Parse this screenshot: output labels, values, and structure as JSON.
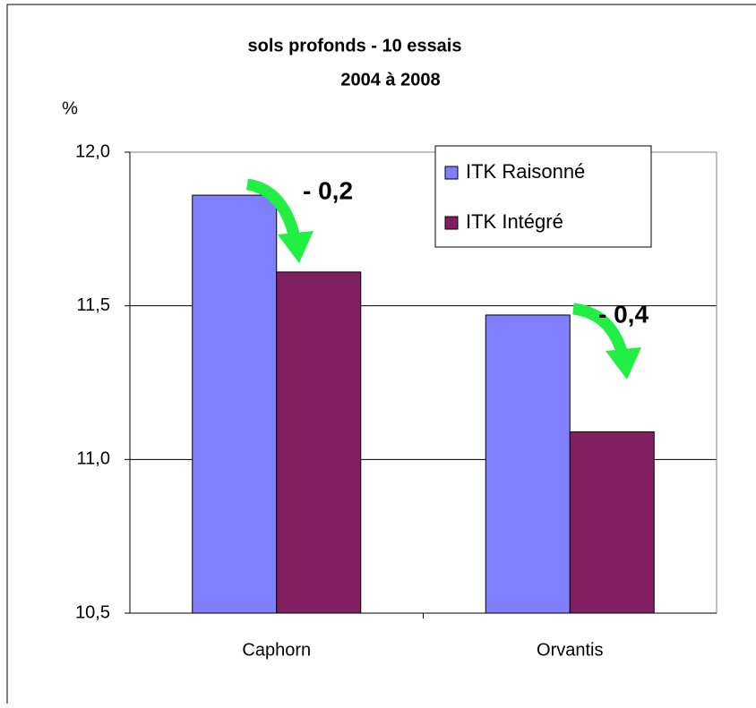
{
  "chart_data": {
    "type": "bar",
    "title": [
      "sols profonds - 10 essais",
      "2004 à 2008"
    ],
    "y_label": "%",
    "categories": [
      "Caphorn",
      "Orvantis"
    ],
    "series": [
      {
        "name": "ITK Raisonné",
        "color": "#8080ff",
        "values": [
          11.86,
          11.47
        ]
      },
      {
        "name": "ITK Intégré",
        "color": "#802060",
        "values": [
          11.61,
          11.09
        ]
      }
    ],
    "ylim": [
      10.5,
      12.0
    ],
    "yticks": [
      {
        "value": 10.5,
        "label": "10,5"
      },
      {
        "value": 11.0,
        "label": "11,0"
      },
      {
        "value": 11.5,
        "label": "11,5"
      },
      {
        "value": 12.0,
        "label": "12,0"
      }
    ],
    "grid": true,
    "legend": "top-right",
    "annotations": [
      "- 0,2",
      "- 0,4"
    ]
  }
}
